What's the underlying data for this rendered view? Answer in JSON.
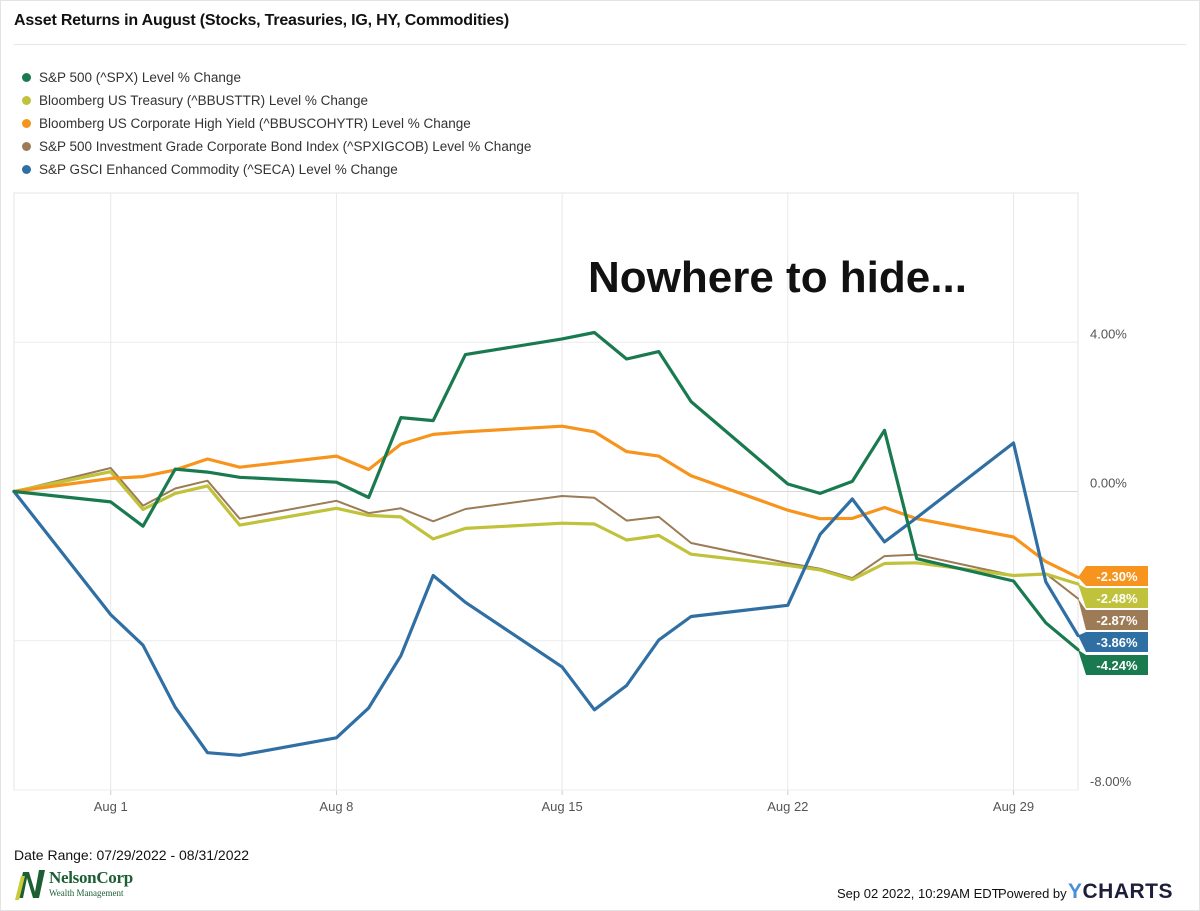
{
  "title": "Asset Returns in August (Stocks, Treasuries, IG, HY, Commodities)",
  "annotation": "Nowhere to hide...",
  "footer": {
    "date_range": "Date Range: 07/29/2022 - 08/31/2022",
    "timestamp": "Sep 02 2022, 10:29AM EDT.",
    "powered_by": "Powered by",
    "brand_y": "Y",
    "brand_rest": "CHARTS",
    "logo_name": "NelsonCorp",
    "logo_sub": "Wealth Management"
  },
  "chart_data": {
    "type": "line",
    "x_tick_labels": [
      "Aug 1",
      "Aug 8",
      "Aug 15",
      "Aug 22",
      "Aug 29"
    ],
    "x_tick_days": [
      1,
      8,
      15,
      22,
      29
    ],
    "x_range_days": [
      -2,
      31
    ],
    "y_tick_labels": [
      "4.00%",
      "0.00%",
      "-8.00%"
    ],
    "y_tick_values": [
      4,
      0,
      -4,
      -8
    ],
    "ylim": [
      -8,
      8
    ],
    "grid": true,
    "legend_position": "top-left",
    "series": [
      {
        "name": "S&P 500 (^SPX) Level % Change",
        "color": "#1a7a4f",
        "end_label": "-4.24%",
        "x": [
          -2,
          1,
          2,
          3,
          4,
          5,
          8,
          9,
          10,
          11,
          12,
          15,
          16,
          17,
          18,
          19,
          22,
          23,
          24,
          25,
          26,
          29,
          30,
          31
        ],
        "y": [
          0,
          -0.28,
          -0.93,
          0.6,
          0.52,
          0.38,
          0.25,
          -0.16,
          1.98,
          1.9,
          3.67,
          4.09,
          4.26,
          3.55,
          3.75,
          2.41,
          0.2,
          -0.05,
          0.27,
          1.64,
          -1.8,
          -2.4,
          -3.52,
          -4.24
        ]
      },
      {
        "name": "Bloomberg US Treasury (^BBUSTTR) Level % Change",
        "color": "#bfc23a",
        "end_label": "-2.48%",
        "x": [
          -2,
          1,
          2,
          3,
          4,
          5,
          8,
          9,
          10,
          11,
          12,
          15,
          16,
          17,
          18,
          19,
          22,
          23,
          24,
          25,
          26,
          29,
          30,
          31
        ],
        "y": [
          0,
          0.53,
          -0.48,
          -0.05,
          0.15,
          -0.9,
          -0.45,
          -0.64,
          -0.68,
          -1.27,
          -0.99,
          -0.85,
          -0.87,
          -1.3,
          -1.18,
          -1.68,
          -1.98,
          -2.1,
          -2.36,
          -1.93,
          -1.91,
          -2.25,
          -2.21,
          -2.48
        ]
      },
      {
        "name": "Bloomberg US Corporate High Yield (^BBUSCOHYTR) Level % Change",
        "color": "#f7941d",
        "end_label": "-2.30%",
        "x": [
          -2,
          1,
          2,
          3,
          4,
          5,
          8,
          9,
          10,
          11,
          12,
          15,
          16,
          17,
          18,
          19,
          22,
          23,
          24,
          25,
          26,
          29,
          30,
          31
        ],
        "y": [
          0,
          0.35,
          0.4,
          0.58,
          0.87,
          0.65,
          0.95,
          0.59,
          1.27,
          1.53,
          1.6,
          1.75,
          1.6,
          1.07,
          0.95,
          0.42,
          -0.5,
          -0.73,
          -0.72,
          -0.43,
          -0.73,
          -1.22,
          -1.88,
          -2.3
        ]
      },
      {
        "name": "S&P 500 Investment Grade Corporate Bond Index (^SPXIGCOB) Level % Change",
        "color": "#9c7b56",
        "end_label": "-2.87%",
        "x": [
          -2,
          1,
          2,
          3,
          4,
          5,
          8,
          9,
          10,
          11,
          12,
          15,
          16,
          17,
          18,
          19,
          22,
          23,
          24,
          25,
          26,
          29,
          30,
          31
        ],
        "y": [
          0,
          0.63,
          -0.38,
          0.08,
          0.29,
          -0.73,
          -0.25,
          -0.58,
          -0.45,
          -0.8,
          -0.47,
          -0.12,
          -0.17,
          -0.78,
          -0.68,
          -1.38,
          -1.92,
          -2.07,
          -2.32,
          -1.73,
          -1.69,
          -2.25,
          -2.2,
          -2.87
        ]
      },
      {
        "name": "S&P GSCI Enhanced Commodity (^SECA) Level % Change",
        "color": "#2f6fa3",
        "end_label": "-3.86%",
        "x": [
          -2,
          1,
          2,
          3,
          4,
          5,
          8,
          9,
          10,
          11,
          12,
          15,
          16,
          17,
          18,
          19,
          22,
          23,
          24,
          25,
          26,
          29,
          30,
          31
        ],
        "y": [
          0,
          -3.3,
          -4.12,
          -5.78,
          -7.0,
          -7.07,
          -6.6,
          -5.8,
          -4.4,
          -2.25,
          -2.97,
          -4.7,
          -5.85,
          -5.2,
          -3.98,
          -3.35,
          -3.05,
          -1.15,
          -0.2,
          -1.35,
          -0.7,
          1.3,
          -2.42,
          -3.86
        ]
      }
    ]
  }
}
